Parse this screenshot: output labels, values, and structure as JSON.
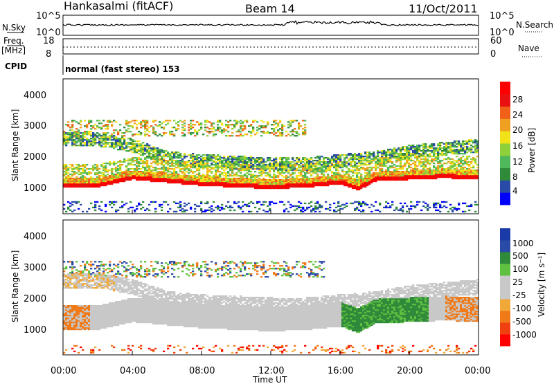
{
  "header": {
    "station": "Hankasalmi (fitACF)",
    "beam": "Beam 14",
    "date": "11/Oct/2011"
  },
  "strip1": {
    "left_label": "N.Sky",
    "left_ticks": [
      "10^5",
      "10^0"
    ],
    "right_label": "N.Search",
    "right_ticks": [
      "10^5",
      "10^0"
    ]
  },
  "strip2": {
    "left_label_1": "Freq.",
    "left_label_2": "[MHz]",
    "left_ticks": [
      "18",
      "8"
    ],
    "right_label": "Nave",
    "right_ticks": [
      "60",
      "0"
    ]
  },
  "cpid": {
    "label": "CPID",
    "text": "normal (fast stereo) 153"
  },
  "colors": {
    "power_scale": [
      "#0000ff",
      "#2a4aa8",
      "#2f8a3a",
      "#4fb85a",
      "#8ed03a",
      "#f2e21a",
      "#f0a020",
      "#f06018",
      "#e81010",
      "#ff0000"
    ],
    "velocity_scale": [
      "#ff0000",
      "#f04010",
      "#f07a18",
      "#f0a838",
      "#c8c8c8",
      "#c8c8c8",
      "#60c040",
      "#2f8a3a",
      "#2a4aa8",
      "#1a3aa8"
    ]
  },
  "chart_data": [
    {
      "type": "heatmap",
      "panel": "power",
      "ylabel": "Slant Range [km]",
      "y_ticks": [
        "1000",
        "2000",
        "3000",
        "4000"
      ],
      "ylim": [
        200,
        4600
      ],
      "colorbar_label": "Power [dB]",
      "colorbar_ticks": [
        "4",
        "8",
        "12",
        "16",
        "20",
        "24",
        "28"
      ],
      "bands": [
        {
          "desc": "main E/F-region band",
          "x_hours": [
            0,
            2,
            4,
            6,
            8,
            10,
            12,
            14,
            16,
            17,
            18,
            20,
            22,
            24
          ],
          "range_km": [
            1100,
            1100,
            1350,
            1250,
            1150,
            1100,
            1050,
            1100,
            1200,
            1000,
            1300,
            1350,
            1400,
            1350
          ],
          "level": "high"
        },
        {
          "desc": "upper band",
          "x_hours": [
            0,
            2,
            4,
            6,
            8,
            10,
            12,
            14,
            16,
            18,
            20,
            22,
            24
          ],
          "range_km": [
            2600,
            2600,
            2400,
            2000,
            1900,
            1850,
            1800,
            1800,
            1900,
            2000,
            2200,
            2300,
            2400
          ],
          "level": "medium"
        }
      ]
    },
    {
      "type": "heatmap",
      "panel": "velocity",
      "ylabel": "Slant Range [km]",
      "y_ticks": [
        "1000",
        "2000",
        "3000",
        "4000"
      ],
      "ylim": [
        200,
        4600
      ],
      "xlabel": "Time UT",
      "x_ticks": [
        "00:00",
        "04:00",
        "08:00",
        "12:00",
        "16:00",
        "20:00",
        "00:00"
      ],
      "xlim": [
        0,
        24
      ],
      "colorbar_label": "Velocity [m s⁻¹]",
      "colorbar_ticks": [
        "-1000",
        "-500",
        "-100",
        "-25",
        "25",
        "100",
        "500",
        "1000"
      ]
    }
  ]
}
